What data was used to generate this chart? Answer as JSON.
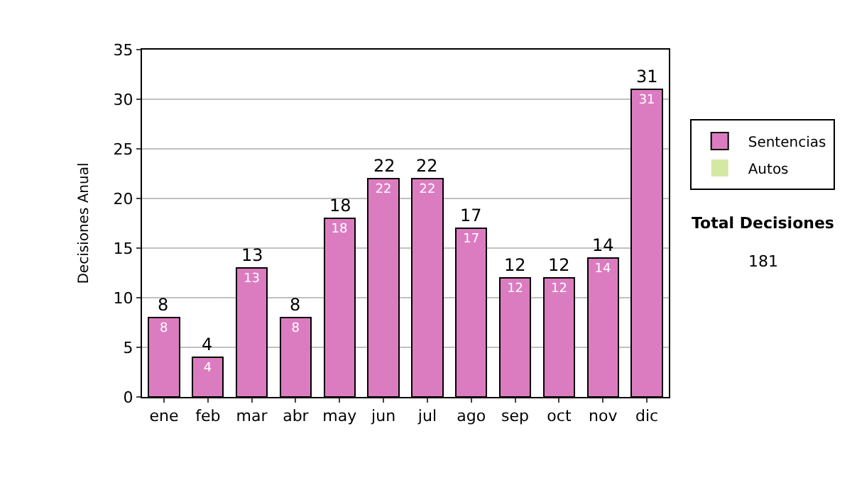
{
  "chart_data": {
    "type": "bar",
    "stacked": true,
    "ylabel": "Decisiones Anual",
    "categories": [
      "ene",
      "feb",
      "mar",
      "abr",
      "may",
      "jun",
      "jul",
      "ago",
      "sep",
      "oct",
      "nov",
      "dic"
    ],
    "series": [
      {
        "name": "Sentencias",
        "color": "#dc7cc0",
        "values": [
          8,
          4,
          13,
          8,
          18,
          22,
          22,
          17,
          12,
          12,
          14,
          31
        ],
        "value_labels": [
          "8",
          "4",
          "13",
          "8",
          "18",
          "22",
          "22",
          "17",
          "12",
          "12",
          "14",
          "31"
        ]
      },
      {
        "name": "Autos",
        "color": "#d4e8a4",
        "values": [
          0,
          0,
          0,
          0,
          0,
          0,
          0,
          0,
          0,
          0,
          0,
          0
        ]
      }
    ],
    "totals": [
      "8",
      "4",
      "13",
      "8",
      "18",
      "22",
      "22",
      "17",
      "12",
      "12",
      "14",
      "31"
    ],
    "ylim": [
      0,
      35
    ],
    "yticks": [
      0,
      5,
      10,
      15,
      20,
      25,
      30,
      35
    ],
    "grid": "y",
    "legend": "right",
    "annotations": [
      "Total Decisiones",
      "181"
    ]
  }
}
